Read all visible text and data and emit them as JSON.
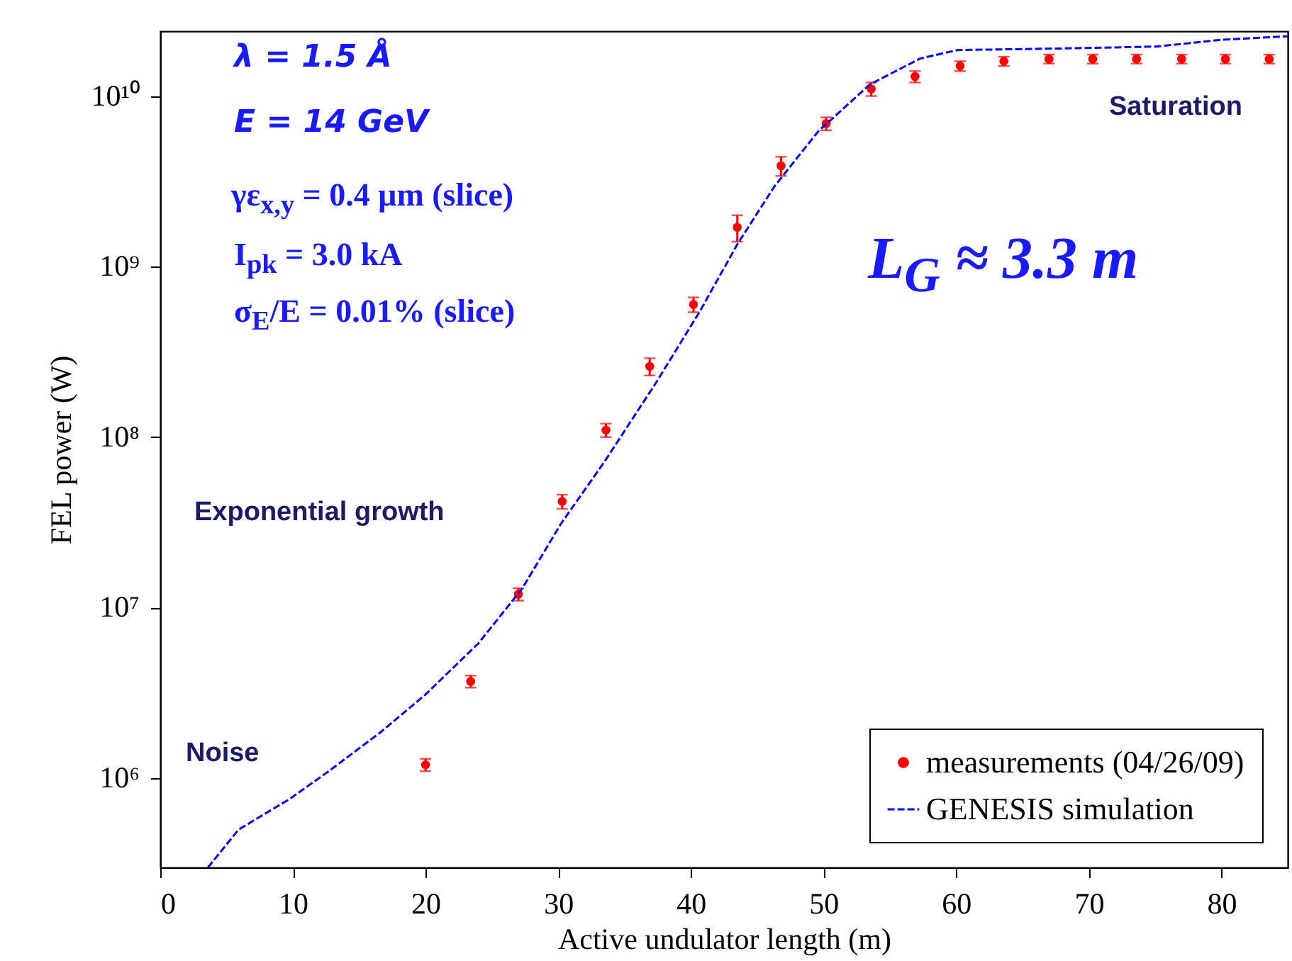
{
  "chart_data": {
    "type": "scatter",
    "xlabel": "Active undulator length (m)",
    "ylabel": "FEL power (W)",
    "xlim": [
      0,
      85
    ],
    "xticks": [
      0,
      10,
      20,
      30,
      40,
      50,
      60,
      70,
      80
    ],
    "ylim": [
      300000,
      24000000000
    ],
    "log": "y",
    "yticks": [
      {
        "value": 1000000,
        "label": "10⁶"
      },
      {
        "value": 10000000,
        "label": "10⁷"
      },
      {
        "value": 100000000,
        "label": "10⁸"
      },
      {
        "value": 1000000000,
        "label": "10⁹"
      },
      {
        "value": 10000000000,
        "label": "10¹⁰"
      }
    ],
    "grid": false,
    "legend": "bottom right",
    "series": [
      {
        "name": "measurements (04/26/09)",
        "color": "#ff0000",
        "marker": "circle",
        "x": [
          20.0,
          23.4,
          27.0,
          30.3,
          33.6,
          36.9,
          40.2,
          43.5,
          46.8,
          50.2,
          53.6,
          56.9,
          60.3,
          63.6,
          67.0,
          70.3,
          73.6,
          77.0,
          80.3,
          83.6
        ],
        "values": [
          1200000,
          3700000,
          12000000,
          42000000,
          110000000,
          260000000,
          600000000,
          1700000000,
          3900000000,
          6900000000,
          11000000000,
          13000000000,
          15000000000,
          16000000000,
          16500000000,
          16500000000,
          16500000000,
          16500000000,
          16500000000,
          16500000000
        ],
        "errors": [
          100000,
          300000,
          1000000,
          4000000,
          10000000,
          30000000,
          60000000,
          300000000,
          500000000,
          600000000,
          1000000000,
          1000000000,
          1000000000,
          1000000000,
          1000000000,
          1000000000,
          1000000000,
          1000000000,
          1000000000,
          1000000000
        ]
      },
      {
        "name": "GENESIS simulation",
        "type": "line",
        "color": "#0000ff",
        "line_style": "dashed",
        "x": [
          3.6,
          5.9,
          9.8,
          12.7,
          16.6,
          20.0,
          24.0,
          27.3,
          30.2,
          33.5,
          37.4,
          40.7,
          43.5,
          46.3,
          49.6,
          53.5,
          57.3,
          60.1,
          67.9,
          75.1,
          80.1,
          85.0
        ],
        "values": [
          300000,
          500000,
          760000,
          1100000,
          1860000,
          3100000,
          6200000,
          13000000,
          31000000,
          72000000,
          210000000,
          550000000,
          1350000000,
          2950000000,
          6200000000,
          11700000000,
          16600000000,
          18600000000,
          19000000000,
          19500000000,
          21400000000,
          22400000000
        ]
      }
    ],
    "annotations": [
      "λ = 1.5 Å",
      "E = 14 GeV",
      "γε$_{x,y}$ = 0.4 μm (slice)",
      "I$_{pk}$ = 3.0 kA",
      "σ$_{E}$/E = 0.01% (slice)",
      "L$_{G}$ ≈ 3.3 m",
      "Saturation",
      "Exponential growth",
      "Noise"
    ]
  }
}
